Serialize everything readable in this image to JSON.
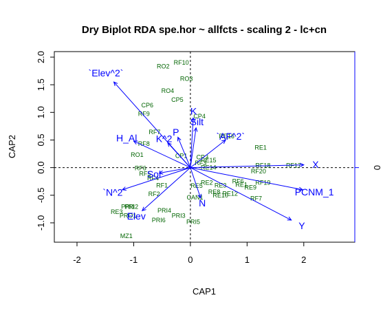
{
  "chart_data": {
    "type": "scatter",
    "title": "Dry Biplot RDA spe.hor ~ allfcts - scaling 2 - lc+cn",
    "xlabel": "CAP1",
    "ylabel": "CAP2",
    "xlim": [
      -2.4,
      2.9
    ],
    "ylim": [
      -1.35,
      2.1
    ],
    "x_ticks": [
      "-2",
      "-1",
      "0",
      "1",
      "2"
    ],
    "y_ticks": [
      "-1.0",
      "-0.5",
      "0.0",
      "0.5",
      "1.0",
      "1.5",
      "2.0"
    ],
    "right_axis_label": "0",
    "grid": false,
    "colors": {
      "sites": "#006400",
      "vectors": "#0000ff",
      "axes": "#0000ff"
    },
    "sites": [
      {
        "label": "RF10",
        "x": -0.16,
        "y": 1.9
      },
      {
        "label": "RO2",
        "x": -0.48,
        "y": 1.83
      },
      {
        "label": "RO3",
        "x": -0.07,
        "y": 1.61
      },
      {
        "label": "RO4",
        "x": -0.4,
        "y": 1.39
      },
      {
        "label": "CP5",
        "x": -0.23,
        "y": 1.23
      },
      {
        "label": "CP6",
        "x": -0.76,
        "y": 1.13
      },
      {
        "label": "RF9",
        "x": -0.82,
        "y": 0.97
      },
      {
        "label": "CP4",
        "x": 0.16,
        "y": 0.93
      },
      {
        "label": "RF7",
        "x": -0.63,
        "y": 0.64
      },
      {
        "label": "RF8",
        "x": -0.82,
        "y": 0.43
      },
      {
        "label": "RO1",
        "x": -0.94,
        "y": 0.23
      },
      {
        "label": "RE1",
        "x": 1.24,
        "y": 0.36
      },
      {
        "label": "RF6",
        "x": -0.88,
        "y": -0.01
      },
      {
        "label": "RF5",
        "x": -0.8,
        "y": -0.11
      },
      {
        "label": "RF4",
        "x": -0.66,
        "y": -0.19
      },
      {
        "label": "RF1",
        "x": -0.5,
        "y": -0.32
      },
      {
        "label": "RF2",
        "x": -0.64,
        "y": -0.48
      },
      {
        "label": "RF18",
        "x": 1.28,
        "y": 0.04
      },
      {
        "label": "RF17",
        "x": 1.82,
        "y": 0.04
      },
      {
        "label": "RF20",
        "x": 1.2,
        "y": -0.07
      },
      {
        "label": "RF19",
        "x": 1.28,
        "y": -0.27
      },
      {
        "label": "RF6",
        "x": 0.84,
        "y": -0.25
      },
      {
        "label": "RE1",
        "x": 0.9,
        "y": -0.31
      },
      {
        "label": "RE9",
        "x": 1.06,
        "y": -0.36
      },
      {
        "label": "RF7",
        "x": 1.16,
        "y": -0.56
      },
      {
        "label": "RE3",
        "x": 0.53,
        "y": -0.32
      },
      {
        "label": "RE2",
        "x": 0.29,
        "y": -0.27
      },
      {
        "label": "RE5",
        "x": 0.11,
        "y": -0.33
      },
      {
        "label": "RE8",
        "x": 0.42,
        "y": -0.44
      },
      {
        "label": "RE10",
        "x": 0.53,
        "y": -0.5
      },
      {
        "label": "RE12",
        "x": 0.7,
        "y": -0.47
      },
      {
        "label": "CAN1",
        "x": 0.08,
        "y": -0.54
      },
      {
        "label": "PRI1",
        "x": -1.1,
        "y": -0.71
      },
      {
        "label": "PRI2",
        "x": -1.04,
        "y": -0.71
      },
      {
        "label": "RE3",
        "x": -1.3,
        "y": -0.8
      },
      {
        "label": "PRO1",
        "x": -1.1,
        "y": -0.87
      },
      {
        "label": "PRI4",
        "x": -0.46,
        "y": -0.78
      },
      {
        "label": "PRI3",
        "x": -0.21,
        "y": -0.87
      },
      {
        "label": "PRI6",
        "x": -0.56,
        "y": -0.95
      },
      {
        "label": "PRI5",
        "x": 0.05,
        "y": -0.98
      },
      {
        "label": "MZ1",
        "x": -1.13,
        "y": -1.24
      },
      {
        "label": "CP3",
        "x": 0.21,
        "y": 0.19
      },
      {
        "label": "CP1",
        "x": -0.16,
        "y": 0.21
      },
      {
        "label": "RE15",
        "x": 0.32,
        "y": 0.13
      },
      {
        "label": "RE14",
        "x": 0.32,
        "y": 0.0
      },
      {
        "label": "RF3",
        "x": 0.18,
        "y": 0.08
      },
      {
        "label": "RE16",
        "x": 0.64,
        "y": 0.57
      }
    ],
    "vectors": [
      {
        "label": "`Elev^2`",
        "x": -1.35,
        "y": 1.55
      },
      {
        "label": "H_Al",
        "x": -1.0,
        "y": 0.48
      },
      {
        "label": "K^2",
        "x": -0.4,
        "y": 0.45
      },
      {
        "label": "P",
        "x": -0.22,
        "y": 0.55
      },
      {
        "label": "K",
        "x": 0.05,
        "y": 0.9
      },
      {
        "label": "Silt",
        "x": 0.1,
        "y": 0.72
      },
      {
        "label": "`AF^2`",
        "x": 0.62,
        "y": 0.5
      },
      {
        "label": "X",
        "x": 2.0,
        "y": 0.05
      },
      {
        "label": "PCNM_1",
        "x": 1.98,
        "y": -0.4
      },
      {
        "label": "Y",
        "x": 1.78,
        "y": -0.95
      },
      {
        "label": "N",
        "x": 0.18,
        "y": -0.55
      },
      {
        "label": "Sol",
        "x": -0.55,
        "y": -0.1
      },
      {
        "label": "`N^2`",
        "x": -1.2,
        "y": -0.4
      },
      {
        "label": "Elev",
        "x": -0.85,
        "y": -0.78
      }
    ]
  }
}
